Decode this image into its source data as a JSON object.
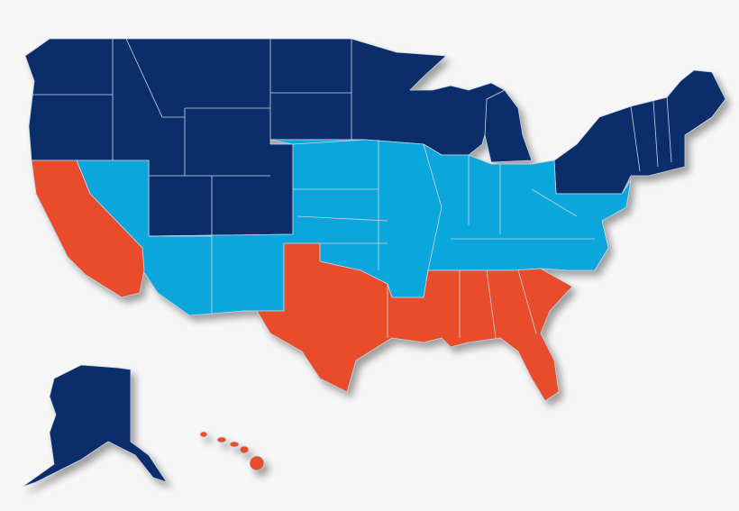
{
  "map": {
    "colors": {
      "north": "#0b2e6b",
      "middle": "#0aa6dc",
      "south": "#e84c2b"
    }
  }
}
